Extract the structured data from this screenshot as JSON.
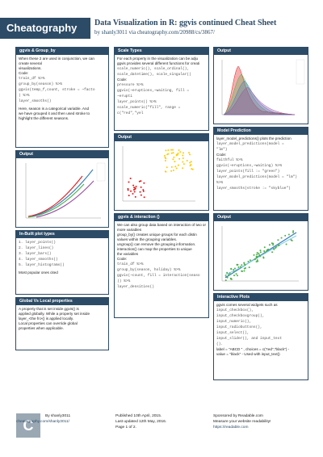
{
  "header": {
    "logo": "Cheatography",
    "title": "Data Visualization in R: ggvis continued Cheat Sheet",
    "subtitle": "by shanly3011 via cheatography.com/20988/cs/3867/"
  },
  "col1": {
    "box1": {
      "title": "ggvis & Group_by",
      "p1": "When these 2 are used in conjunction, we can create several",
      "p2": "visualizations.",
      "code_label": "Code:",
      "c1": "train_df %>%",
      "c2": "group_by(season) %>%",
      "c3": "ggvis(temp_f,count, stroke = ~facto",
      "c4": ") %>%",
      "c5": "layer_smooths()",
      "p3": "Here, season is a categorical variable. And",
      "p4": "we have grouped it and then used stroke to",
      "p5": "highlight the different seasons."
    },
    "output1": {
      "title": "Output"
    },
    "inbuilt": {
      "title": "In-Built plot types",
      "items": [
        "1. layer_points()",
        "2. layer_lines()",
        "3. layer_bars()",
        "4. layer_smooths()",
        "5. layer_histograms()"
      ],
      "note": "Most popular ones cited"
    },
    "globalvs": {
      "title": "Global Vs Local properties",
      "lines": [
        "A property that is set inside ggvis() is",
        "applied globally. While a property set inside",
        "layer_<the fn>() is applied locally.",
        "Local properties can override global",
        "properties when applicable."
      ]
    }
  },
  "col2": {
    "scale": {
      "title": "Scale Types",
      "lines": [
        "For each property in the visualization can be adju",
        "ggvis provides several different functions for creati"
      ],
      "code1": [
        "scale_numeric(), scale_ordinal(),",
        "scale_datetime(), scale_singular()"
      ],
      "code_label": "Code:",
      "code2": [
        "pressure %>%",
        "ggvis(~eruptions,~waiting, fill = ~erupti",
        "layer_points() %>%",
        "scale_numeric(\"fill\", range = c(\"red\",\"yel"
      ]
    },
    "output2": {
      "title": "Output"
    },
    "interaction": {
      "title": "ggvis & interaction ()",
      "lines": [
        "We can also group data based on interaction of two or more variables",
        "group_by() creates unique groups for each distin",
        "values within the grouping variables.",
        "ungroup() can remove the grouping information.",
        "interaction() can map the properties to unique",
        "the variables"
      ],
      "code_label": "Code:",
      "code": [
        "train_df %>%",
        "group_by(season, holiday) %>%",
        "ggvis(~count, fill = interaction(seaso",
        ")) %>%",
        "layer_densities()"
      ]
    }
  },
  "col3": {
    "output3": {
      "title": "Output"
    },
    "model": {
      "title": "Model Prediction",
      "lines": [
        "layer_model_predictions() plots the prediction"
      ],
      "code_a": [
        "layer_model_predictions(model =",
        "\"lm\")"
      ],
      "code_label": "Code:",
      "code": [
        "faithful %>%",
        "ggvis(~eruptions,~waiting) %>%",
        "layer_points(fill := \"green\")",
        "layer_model_predictions(model = \"lm\") %>%",
        "layer_smooths(stroke := \"skyblue\")"
      ]
    },
    "output4": {
      "title": "Output"
    },
    "interactive": {
      "title": "Interactive Plots",
      "lines": [
        "ggvis comes several widgets such as"
      ],
      "code": [
        "input_checkbox(),",
        "input_checkboxgroup(),",
        "input_numeric(),",
        "input_radiobuttons(),",
        "input_select(),",
        "input_slider(), and input_text",
        "()."
      ],
      "tail": [
        "label = \"ABCD \" , choices = c(\"red\",\"black\") -",
        "value = \"black\" - Used with input_text()"
      ]
    }
  },
  "footer": {
    "author": "By shanly3011",
    "author_url": "cheatography.com/shanly3011/",
    "published": "Published 10th April, 2015.",
    "updated": "Last updated 12th May, 2016.",
    "page": "Page 1 of 2.",
    "sponsor": "Sponsored by Readable.com",
    "sponsor2": "Measure your website readability!",
    "sponsor_url": "https://readable.com"
  },
  "colors": {
    "accent": "#2c4b66",
    "red": "#e41a1c",
    "green": "#4daf4a"
  }
}
